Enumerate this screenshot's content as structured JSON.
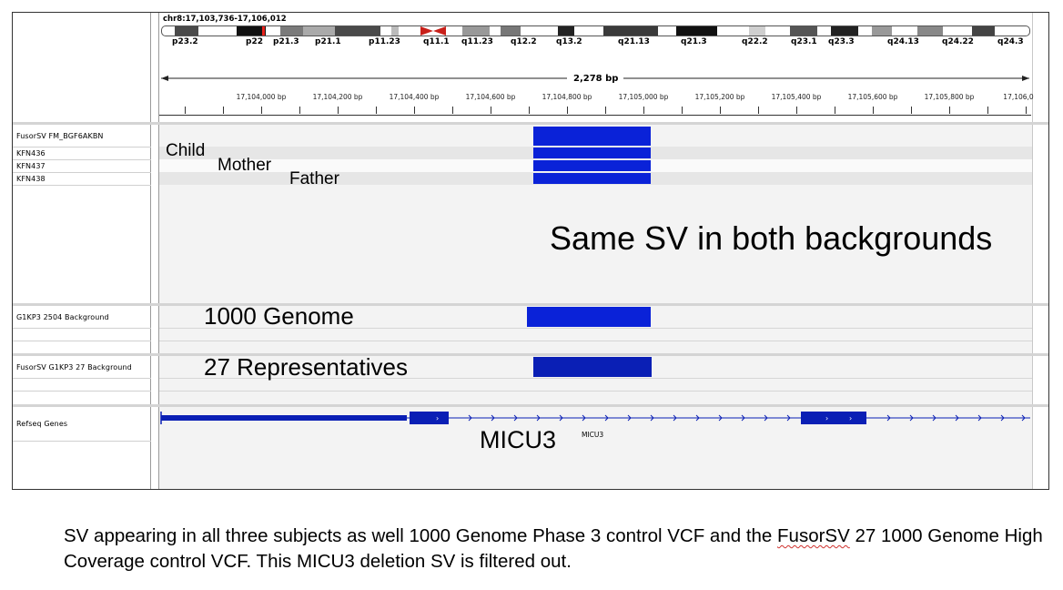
{
  "header": {
    "locus": "chr8:17,103,736-17,106,012",
    "span": "2,278 bp"
  },
  "ideogram": {
    "bands": [
      "p23.2",
      "p22",
      "p21.3",
      "p21.1",
      "p11.23",
      "q11.1",
      "q11.23",
      "q12.2",
      "q13.2",
      "q21.13",
      "q21.3",
      "q22.2",
      "q23.1",
      "q23.3",
      "q24.13",
      "q24.22",
      "q24.3"
    ],
    "highlight_color": "#e8221b"
  },
  "ruler": {
    "ticks": [
      "17,104,000 bp",
      "17,104,200 bp",
      "17,104,400 bp",
      "17,104,600 bp",
      "17,104,800 bp",
      "17,105,000 bp",
      "17,105,200 bp",
      "17,105,400 bp",
      "17,105,600 bp",
      "17,105,800 bp",
      "17,106,0"
    ]
  },
  "tracks": {
    "fusorsv": {
      "name": "FusorSV FM_BGF6AKBN",
      "samples": [
        "KFN436",
        "KFN437",
        "KFN438"
      ]
    },
    "g1kp3": {
      "name": "G1KP3 2504 Background"
    },
    "fusor27": {
      "name": "FusorSV G1KP3 27 Background"
    },
    "refseq": {
      "name": "Refseq Genes",
      "gene": "MICU3"
    }
  },
  "annotations": {
    "child": "Child",
    "mother": "Mother",
    "father": "Father",
    "same_sv": "Same SV in both backgrounds",
    "g1000": "1000 Genome",
    "reps": "27 Representatives",
    "micu3": "MICU3"
  },
  "caption": {
    "part1": "SV appearing in all three subjects as well 1000 Genome Phase 3 control VCF and the ",
    "flagged": "FusorSV",
    "part2": " 27 1000 Genome High Coverage control VCF. This MICU3 deletion SV is filtered out."
  },
  "colors": {
    "feature_blue": "#0a22d8",
    "gene_blue": "#0a1fb5"
  }
}
